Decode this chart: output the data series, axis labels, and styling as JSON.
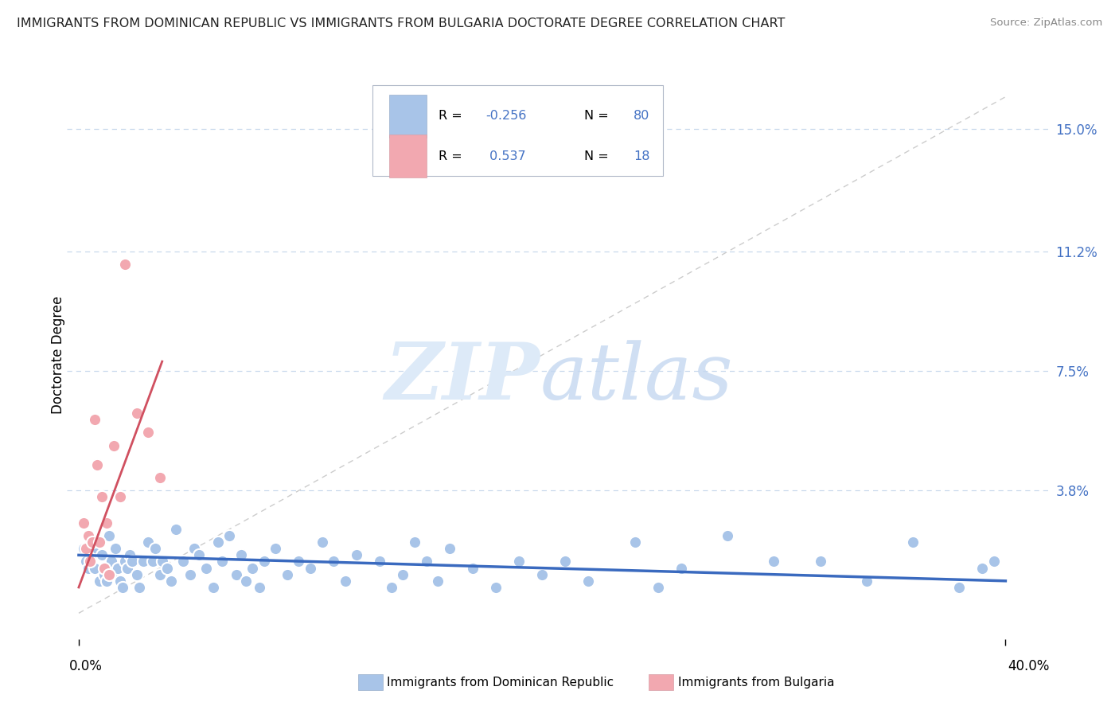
{
  "title": "IMMIGRANTS FROM DOMINICAN REPUBLIC VS IMMIGRANTS FROM BULGARIA DOCTORATE DEGREE CORRELATION CHART",
  "source": "Source: ZipAtlas.com",
  "ylabel": "Doctorate Degree",
  "ytick_labels": [
    "3.8%",
    "7.5%",
    "11.2%",
    "15.0%"
  ],
  "ytick_values": [
    0.038,
    0.075,
    0.112,
    0.15
  ],
  "xtick_labels": [
    "0.0%",
    "40.0%"
  ],
  "xtick_values": [
    0.0,
    0.4
  ],
  "xlim": [
    -0.005,
    0.42
  ],
  "ylim": [
    -0.008,
    0.168
  ],
  "r_blue": -0.256,
  "n_blue": 80,
  "r_pink": 0.537,
  "n_pink": 18,
  "legend_label_blue": "Immigrants from Dominican Republic",
  "legend_label_pink": "Immigrants from Bulgaria",
  "color_blue": "#a8c4e8",
  "color_pink": "#f2a8b0",
  "line_color_blue": "#3a6abf",
  "line_color_pink": "#d05060",
  "grid_color": "#c8d8ec",
  "title_color": "#222222",
  "source_color": "#888888",
  "axis_label_color": "#4472c4",
  "blue_dots": [
    [
      0.002,
      0.02
    ],
    [
      0.003,
      0.016
    ],
    [
      0.004,
      0.014
    ],
    [
      0.005,
      0.022
    ],
    [
      0.006,
      0.018
    ],
    [
      0.007,
      0.014
    ],
    [
      0.008,
      0.02
    ],
    [
      0.009,
      0.01
    ],
    [
      0.01,
      0.018
    ],
    [
      0.011,
      0.012
    ],
    [
      0.012,
      0.01
    ],
    [
      0.013,
      0.024
    ],
    [
      0.014,
      0.016
    ],
    [
      0.015,
      0.012
    ],
    [
      0.016,
      0.02
    ],
    [
      0.017,
      0.014
    ],
    [
      0.018,
      0.01
    ],
    [
      0.019,
      0.008
    ],
    [
      0.02,
      0.016
    ],
    [
      0.021,
      0.014
    ],
    [
      0.022,
      0.018
    ],
    [
      0.023,
      0.016
    ],
    [
      0.025,
      0.012
    ],
    [
      0.026,
      0.008
    ],
    [
      0.028,
      0.016
    ],
    [
      0.03,
      0.022
    ],
    [
      0.032,
      0.016
    ],
    [
      0.033,
      0.02
    ],
    [
      0.035,
      0.012
    ],
    [
      0.036,
      0.016
    ],
    [
      0.038,
      0.014
    ],
    [
      0.04,
      0.01
    ],
    [
      0.042,
      0.026
    ],
    [
      0.045,
      0.016
    ],
    [
      0.048,
      0.012
    ],
    [
      0.05,
      0.02
    ],
    [
      0.052,
      0.018
    ],
    [
      0.055,
      0.014
    ],
    [
      0.058,
      0.008
    ],
    [
      0.06,
      0.022
    ],
    [
      0.062,
      0.016
    ],
    [
      0.065,
      0.024
    ],
    [
      0.068,
      0.012
    ],
    [
      0.07,
      0.018
    ],
    [
      0.072,
      0.01
    ],
    [
      0.075,
      0.014
    ],
    [
      0.078,
      0.008
    ],
    [
      0.08,
      0.016
    ],
    [
      0.085,
      0.02
    ],
    [
      0.09,
      0.012
    ],
    [
      0.095,
      0.016
    ],
    [
      0.1,
      0.014
    ],
    [
      0.105,
      0.022
    ],
    [
      0.11,
      0.016
    ],
    [
      0.115,
      0.01
    ],
    [
      0.12,
      0.018
    ],
    [
      0.13,
      0.016
    ],
    [
      0.135,
      0.008
    ],
    [
      0.14,
      0.012
    ],
    [
      0.145,
      0.022
    ],
    [
      0.15,
      0.016
    ],
    [
      0.155,
      0.01
    ],
    [
      0.16,
      0.02
    ],
    [
      0.17,
      0.014
    ],
    [
      0.18,
      0.008
    ],
    [
      0.19,
      0.016
    ],
    [
      0.2,
      0.012
    ],
    [
      0.21,
      0.016
    ],
    [
      0.22,
      0.01
    ],
    [
      0.24,
      0.022
    ],
    [
      0.25,
      0.008
    ],
    [
      0.26,
      0.014
    ],
    [
      0.28,
      0.024
    ],
    [
      0.3,
      0.016
    ],
    [
      0.32,
      0.016
    ],
    [
      0.34,
      0.01
    ],
    [
      0.36,
      0.022
    ],
    [
      0.38,
      0.008
    ],
    [
      0.39,
      0.014
    ],
    [
      0.395,
      0.016
    ]
  ],
  "pink_dots": [
    [
      0.002,
      0.028
    ],
    [
      0.003,
      0.02
    ],
    [
      0.004,
      0.024
    ],
    [
      0.005,
      0.016
    ],
    [
      0.006,
      0.022
    ],
    [
      0.007,
      0.06
    ],
    [
      0.008,
      0.046
    ],
    [
      0.009,
      0.022
    ],
    [
      0.01,
      0.036
    ],
    [
      0.011,
      0.014
    ],
    [
      0.012,
      0.028
    ],
    [
      0.013,
      0.012
    ],
    [
      0.015,
      0.052
    ],
    [
      0.018,
      0.036
    ],
    [
      0.02,
      0.108
    ],
    [
      0.025,
      0.062
    ],
    [
      0.03,
      0.056
    ],
    [
      0.035,
      0.042
    ]
  ],
  "blue_trend_x": [
    0.0,
    0.4
  ],
  "blue_trend_y": [
    0.018,
    0.01
  ],
  "pink_trend_x": [
    0.0,
    0.036
  ],
  "pink_trend_y": [
    0.008,
    0.078
  ],
  "diag_line_x": [
    0.0,
    0.4
  ],
  "diag_line_y": [
    0.0,
    0.16
  ]
}
